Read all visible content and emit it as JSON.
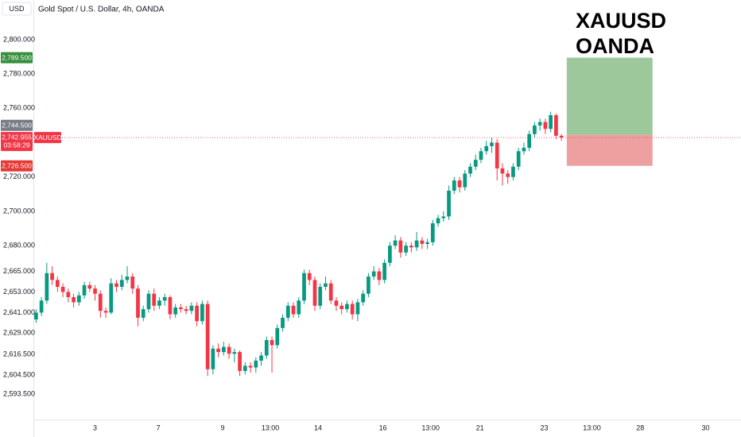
{
  "chart_data": {
    "type": "candlestick",
    "title": "Gold Spot / U.S. Dollar, 4h, OANDA",
    "currency": "USD",
    "annotation": [
      "XAUUSD",
      "OANDA"
    ],
    "up_color": "#089981",
    "down_color": "#f23645",
    "grid": false,
    "ylim": [
      2578.7,
      2823.1
    ],
    "yticks": [
      {
        "value": 2800,
        "label": "2,800.000"
      },
      {
        "value": 2780,
        "label": "2,780.000"
      },
      {
        "value": 2760,
        "label": "2,760.000"
      },
      {
        "value": 2720,
        "label": "2,720.000"
      },
      {
        "value": 2700,
        "label": "2,700.000"
      },
      {
        "value": 2680,
        "label": "2,680.000"
      },
      {
        "value": 2665,
        "label": "2,665.000"
      },
      {
        "value": 2653,
        "label": "2,653.000"
      },
      {
        "value": 2641,
        "label": "2,641.000"
      },
      {
        "value": 2629,
        "label": "2,629.000"
      },
      {
        "value": 2616.5,
        "label": "2,616.500"
      },
      {
        "value": 2604.5,
        "label": "2,604.500"
      },
      {
        "value": 2593.5,
        "label": "2,593.500"
      }
    ],
    "xlim": [
      -0.5,
      131.5
    ],
    "xticks": [
      {
        "value": 11,
        "label": "3"
      },
      {
        "value": 22.8,
        "label": "7"
      },
      {
        "value": 34.8,
        "label": "9"
      },
      {
        "value": 43.7,
        "label": "13:00"
      },
      {
        "value": 52.6,
        "label": "14"
      },
      {
        "value": 64.7,
        "label": "16"
      },
      {
        "value": 73.6,
        "label": "13:00"
      },
      {
        "value": 82.8,
        "label": "21"
      },
      {
        "value": 94.8,
        "label": "23"
      },
      {
        "value": 103.7,
        "label": "13:00"
      },
      {
        "value": 112.7,
        "label": "28"
      },
      {
        "value": 124.9,
        "label": "30"
      }
    ],
    "candles": [
      [
        2637,
        2643,
        2635,
        2641
      ],
      [
        2641,
        2650,
        2639,
        2648
      ],
      [
        2648,
        2670,
        2646,
        2664
      ],
      [
        2664,
        2668,
        2657,
        2660
      ],
      [
        2660,
        2662,
        2653,
        2656
      ],
      [
        2656,
        2658,
        2650,
        2653
      ],
      [
        2653,
        2655,
        2647,
        2650
      ],
      [
        2650,
        2652,
        2644,
        2647
      ],
      [
        2647,
        2653,
        2645,
        2651
      ],
      [
        2651,
        2659,
        2649,
        2657
      ],
      [
        2657,
        2659,
        2653,
        2655
      ],
      [
        2655,
        2657,
        2648,
        2652
      ],
      [
        2652,
        2654,
        2638,
        2642
      ],
      [
        2642,
        2644,
        2638,
        2641
      ],
      [
        2641,
        2661,
        2640,
        2658
      ],
      [
        2658,
        2660,
        2653,
        2656
      ],
      [
        2656,
        2663,
        2654,
        2660
      ],
      [
        2660,
        2668,
        2658,
        2662
      ],
      [
        2662,
        2664,
        2652,
        2655
      ],
      [
        2655,
        2657,
        2633,
        2638
      ],
      [
        2638,
        2645,
        2636,
        2643
      ],
      [
        2643,
        2654,
        2641,
        2652
      ],
      [
        2652,
        2655,
        2642,
        2645
      ],
      [
        2645,
        2650,
        2643,
        2648
      ],
      [
        2648,
        2652,
        2645,
        2650
      ],
      [
        2650,
        2651,
        2637,
        2640
      ],
      [
        2640,
        2646,
        2638,
        2644
      ],
      [
        2644,
        2646,
        2641,
        2643
      ],
      [
        2643,
        2645,
        2640,
        2642
      ],
      [
        2642,
        2647,
        2640,
        2645
      ],
      [
        2645,
        2647,
        2633,
        2636
      ],
      [
        2636,
        2648,
        2634,
        2646
      ],
      [
        2646,
        2648,
        2604,
        2608
      ],
      [
        2608,
        2622,
        2605,
        2620
      ],
      [
        2620,
        2623,
        2615,
        2618
      ],
      [
        2618,
        2624,
        2616,
        2621
      ],
      [
        2621,
        2623,
        2614,
        2617
      ],
      [
        2617,
        2620,
        2612,
        2618
      ],
      [
        2618,
        2619,
        2604,
        2607
      ],
      [
        2607,
        2612,
        2605,
        2610
      ],
      [
        2610,
        2612,
        2606,
        2609
      ],
      [
        2609,
        2615,
        2606,
        2613
      ],
      [
        2613,
        2618,
        2610,
        2616
      ],
      [
        2616,
        2627,
        2614,
        2625
      ],
      [
        2625,
        2627,
        2606,
        2622
      ],
      [
        2622,
        2634,
        2620,
        2632
      ],
      [
        2632,
        2640,
        2630,
        2638
      ],
      [
        2638,
        2647,
        2636,
        2645
      ],
      [
        2645,
        2647,
        2638,
        2640
      ],
      [
        2640,
        2650,
        2638,
        2648
      ],
      [
        2648,
        2666,
        2646,
        2664
      ],
      [
        2664,
        2666,
        2657,
        2660
      ],
      [
        2660,
        2662,
        2642,
        2645
      ],
      [
        2645,
        2658,
        2643,
        2656
      ],
      [
        2656,
        2662,
        2654,
        2658
      ],
      [
        2658,
        2660,
        2646,
        2648
      ],
      [
        2648,
        2650,
        2642,
        2645
      ],
      [
        2645,
        2647,
        2640,
        2643
      ],
      [
        2643,
        2648,
        2641,
        2646
      ],
      [
        2646,
        2648,
        2637,
        2640
      ],
      [
        2640,
        2649,
        2636,
        2647
      ],
      [
        2647,
        2654,
        2645,
        2652
      ],
      [
        2652,
        2664,
        2650,
        2662
      ],
      [
        2662,
        2668,
        2660,
        2665
      ],
      [
        2665,
        2667,
        2657,
        2660
      ],
      [
        2660,
        2672,
        2658,
        2670
      ],
      [
        2670,
        2682,
        2668,
        2680
      ],
      [
        2680,
        2686,
        2678,
        2683
      ],
      [
        2683,
        2685,
        2673,
        2676
      ],
      [
        2676,
        2682,
        2674,
        2680
      ],
      [
        2680,
        2682,
        2676,
        2679
      ],
      [
        2679,
        2688,
        2677,
        2683
      ],
      [
        2683,
        2685,
        2678,
        2681
      ],
      [
        2681,
        2684,
        2678,
        2682
      ],
      [
        2682,
        2695,
        2680,
        2693
      ],
      [
        2693,
        2698,
        2691,
        2696
      ],
      [
        2696,
        2700,
        2694,
        2697
      ],
      [
        2697,
        2715,
        2695,
        2712
      ],
      [
        2712,
        2720,
        2710,
        2718
      ],
      [
        2718,
        2720,
        2711,
        2714
      ],
      [
        2714,
        2724,
        2712,
        2722
      ],
      [
        2722,
        2728,
        2720,
        2726
      ],
      [
        2726,
        2733,
        2724,
        2730
      ],
      [
        2730,
        2737,
        2728,
        2735
      ],
      [
        2735,
        2741,
        2733,
        2738
      ],
      [
        2738,
        2743,
        2734,
        2740
      ],
      [
        2740,
        2742,
        2718,
        2725
      ],
      [
        2725,
        2728,
        2715,
        2722
      ],
      [
        2722,
        2724,
        2716,
        2720
      ],
      [
        2720,
        2728,
        2718,
        2726
      ],
      [
        2726,
        2737,
        2724,
        2735
      ],
      [
        2735,
        2740,
        2733,
        2737
      ],
      [
        2737,
        2747,
        2735,
        2745
      ],
      [
        2745,
        2752,
        2743,
        2750
      ],
      [
        2750,
        2754,
        2747,
        2752
      ],
      [
        2752,
        2754,
        2745,
        2748
      ],
      [
        2748,
        2758,
        2746,
        2756
      ],
      [
        2756,
        2757,
        2742,
        2744
      ],
      [
        2744,
        2745,
        2741,
        2743
      ]
    ],
    "current_price": {
      "value": 2742.955,
      "label": "2,742.955",
      "symbol": "XAUUSD",
      "countdown": "03:58:29",
      "color": "#f23645"
    },
    "position": {
      "start": 99,
      "end": 115,
      "take_profit": {
        "value": 2789.5,
        "label": "2,789.500",
        "color": "#388e3c",
        "zone": "#9cc89c"
      },
      "entry": {
        "value": 2744.5,
        "label": "2,744.500",
        "color": "#787b86"
      },
      "stop_loss": {
        "value": 2726.5,
        "label": "2,726.500",
        "color": "#e53935",
        "zone": "#eea0a0"
      }
    }
  }
}
